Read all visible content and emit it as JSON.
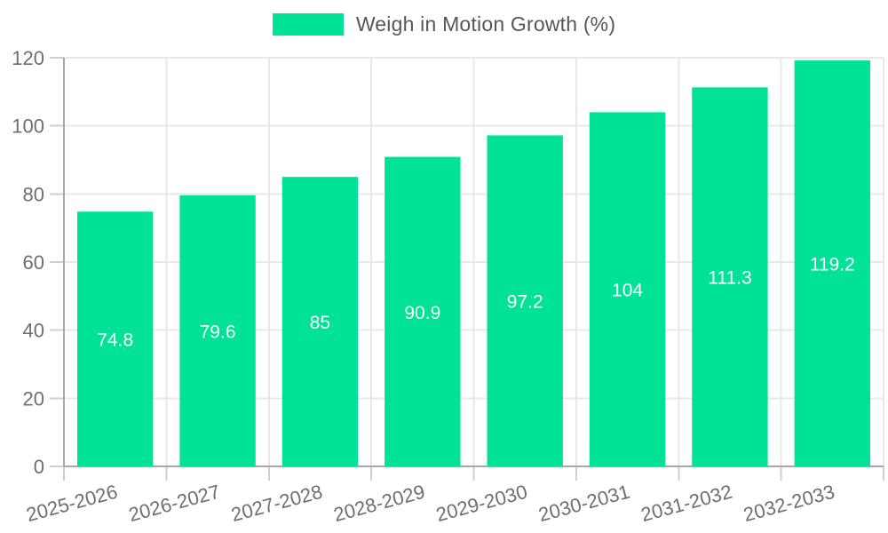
{
  "chart_data": {
    "type": "bar",
    "title": "Weigh in Motion Growth (%)",
    "categories": [
      "2025-2026",
      "2026-2027",
      "2027-2028",
      "2028-2029",
      "2029-2030",
      "2030-2031",
      "2031-2032",
      "2032-2033"
    ],
    "series": [
      {
        "name": "Weigh in Motion Growth (%)",
        "values": [
          74.8,
          79.6,
          85,
          90.9,
          97.2,
          104,
          111.3,
          119.2
        ]
      }
    ],
    "value_labels": [
      "74.8",
      "79.6",
      "85",
      "90.9",
      "97.2",
      "104",
      "111.3",
      "119.2"
    ],
    "xlabel": "",
    "ylabel": "",
    "ylim": [
      0,
      120
    ],
    "ytick_step": 20,
    "ytick_labels": [
      "0",
      "20",
      "40",
      "60",
      "80",
      "100",
      "120"
    ],
    "grid": true,
    "legend_position": "top",
    "data_label_placement": "inside-center",
    "x_label_rotation_deg": -15,
    "colors": {
      "bar": "#00E396",
      "grid": "#e8e8e8",
      "axis": "#a8a8a8",
      "tick": "#cfcfcf",
      "axis_label": "#6e6e6e",
      "title": "#565656",
      "data_label": "#ffffff",
      "background": "#ffffff"
    }
  }
}
